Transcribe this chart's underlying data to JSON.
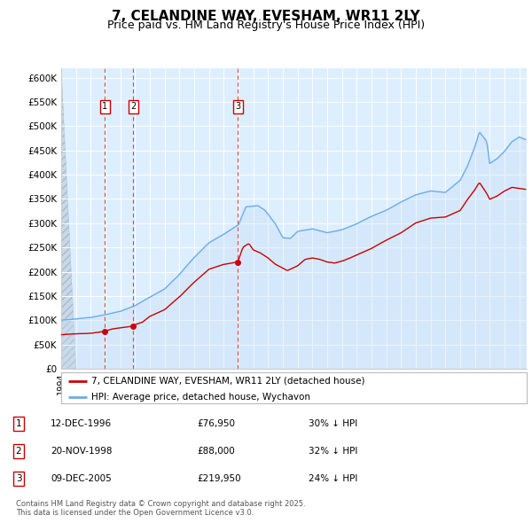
{
  "title": "7, CELANDINE WAY, EVESHAM, WR11 2LY",
  "subtitle": "Price paid vs. HM Land Registry's House Price Index (HPI)",
  "title_fontsize": 11,
  "subtitle_fontsize": 9,
  "background_color": "#ffffff",
  "plot_bg_color": "#ddeeff",
  "grid_color": "#ffffff",
  "hpi_color": "#6aaee8",
  "hpi_fill_color": "#c8dff5",
  "price_color": "#cc0000",
  "dashed_vline_color": "#dd4444",
  "transactions": [
    {
      "num": 1,
      "date": "12-DEC-1996",
      "price": 76950,
      "pct": "30%",
      "x_year": 1996.95
    },
    {
      "num": 2,
      "date": "20-NOV-1998",
      "price": 88000,
      "pct": "32%",
      "x_year": 1998.88
    },
    {
      "num": 3,
      "date": "09-DEC-2005",
      "price": 219950,
      "pct": "24%",
      "x_year": 2005.95
    }
  ],
  "legend_label_red": "7, CELANDINE WAY, EVESHAM, WR11 2LY (detached house)",
  "legend_label_blue": "HPI: Average price, detached house, Wychavon",
  "footnote": "Contains HM Land Registry data © Crown copyright and database right 2025.\nThis data is licensed under the Open Government Licence v3.0.",
  "xlim": [
    1994.0,
    2025.5
  ],
  "ylim": [
    0,
    620000
  ],
  "yticks": [
    0,
    50000,
    100000,
    150000,
    200000,
    250000,
    300000,
    350000,
    400000,
    450000,
    500000,
    550000,
    600000
  ],
  "ytick_labels": [
    "£0",
    "£50K",
    "£100K",
    "£150K",
    "£200K",
    "£250K",
    "£300K",
    "£350K",
    "£400K",
    "£450K",
    "£500K",
    "£550K",
    "£600K"
  ]
}
